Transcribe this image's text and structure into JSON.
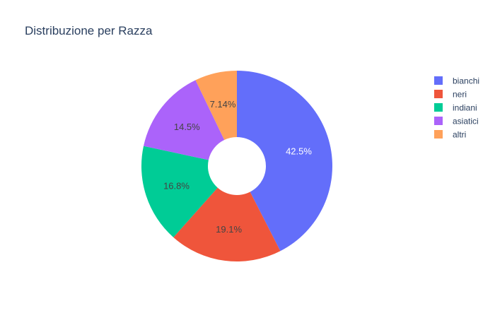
{
  "chart_data": {
    "type": "pie",
    "hole": true,
    "title": "Distribuzione per Razza",
    "categories": [
      "bianchi",
      "neri",
      "indiani",
      "asiatici",
      "altri"
    ],
    "values": [
      42.5,
      19.1,
      16.8,
      14.5,
      7.14
    ],
    "value_labels": [
      "42.5%",
      "19.1%",
      "16.8%",
      "14.5%",
      "7.14%"
    ],
    "colors": [
      "#636efa",
      "#ef553b",
      "#00cc96",
      "#ab63fa",
      "#ffa15a"
    ],
    "label_text_colors": [
      "#ffffff",
      "#444444",
      "#444444",
      "#444444",
      "#444444"
    ],
    "legend_position": "top-right",
    "direction": "clockwise",
    "start": "top"
  }
}
